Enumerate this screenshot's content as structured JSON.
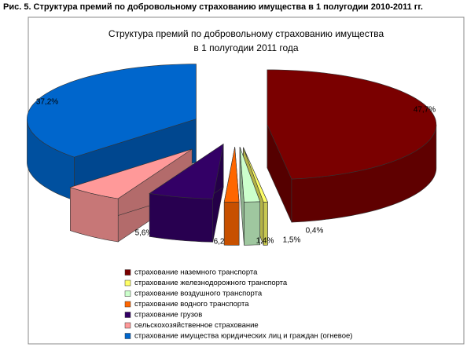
{
  "caption": "Рис. 5. Структура премий по добровольному страхованию имущества в 1 полугодии 2010-2011 гг.",
  "chart_data": {
    "type": "pie3d",
    "title": [
      "Структура премий по добровольному страхованию имущества",
      "в 1 полугодии 2011 года"
    ],
    "categories": [
      "страхование наземного транспорта",
      "страхование железнодорожного транспорта",
      "страхование воздушного транспорта",
      "страхование водного транспорта",
      "страхование грузов",
      "сельскохозяйственное страхование",
      "страхование имущества юридических лиц и граждан (огневое)"
    ],
    "values": [
      47.7,
      0.4,
      1.5,
      1.4,
      6.2,
      5.6,
      37.2
    ],
    "value_labels": [
      "47,7%",
      "0,4%",
      "1,5%",
      "1,4%",
      "6,2%",
      "5,6%",
      "37,2%"
    ],
    "colors": [
      "#7a0000",
      "#ffff66",
      "#ccffcc",
      "#ff6600",
      "#330066",
      "#ff9999",
      "#0066cc"
    ]
  }
}
